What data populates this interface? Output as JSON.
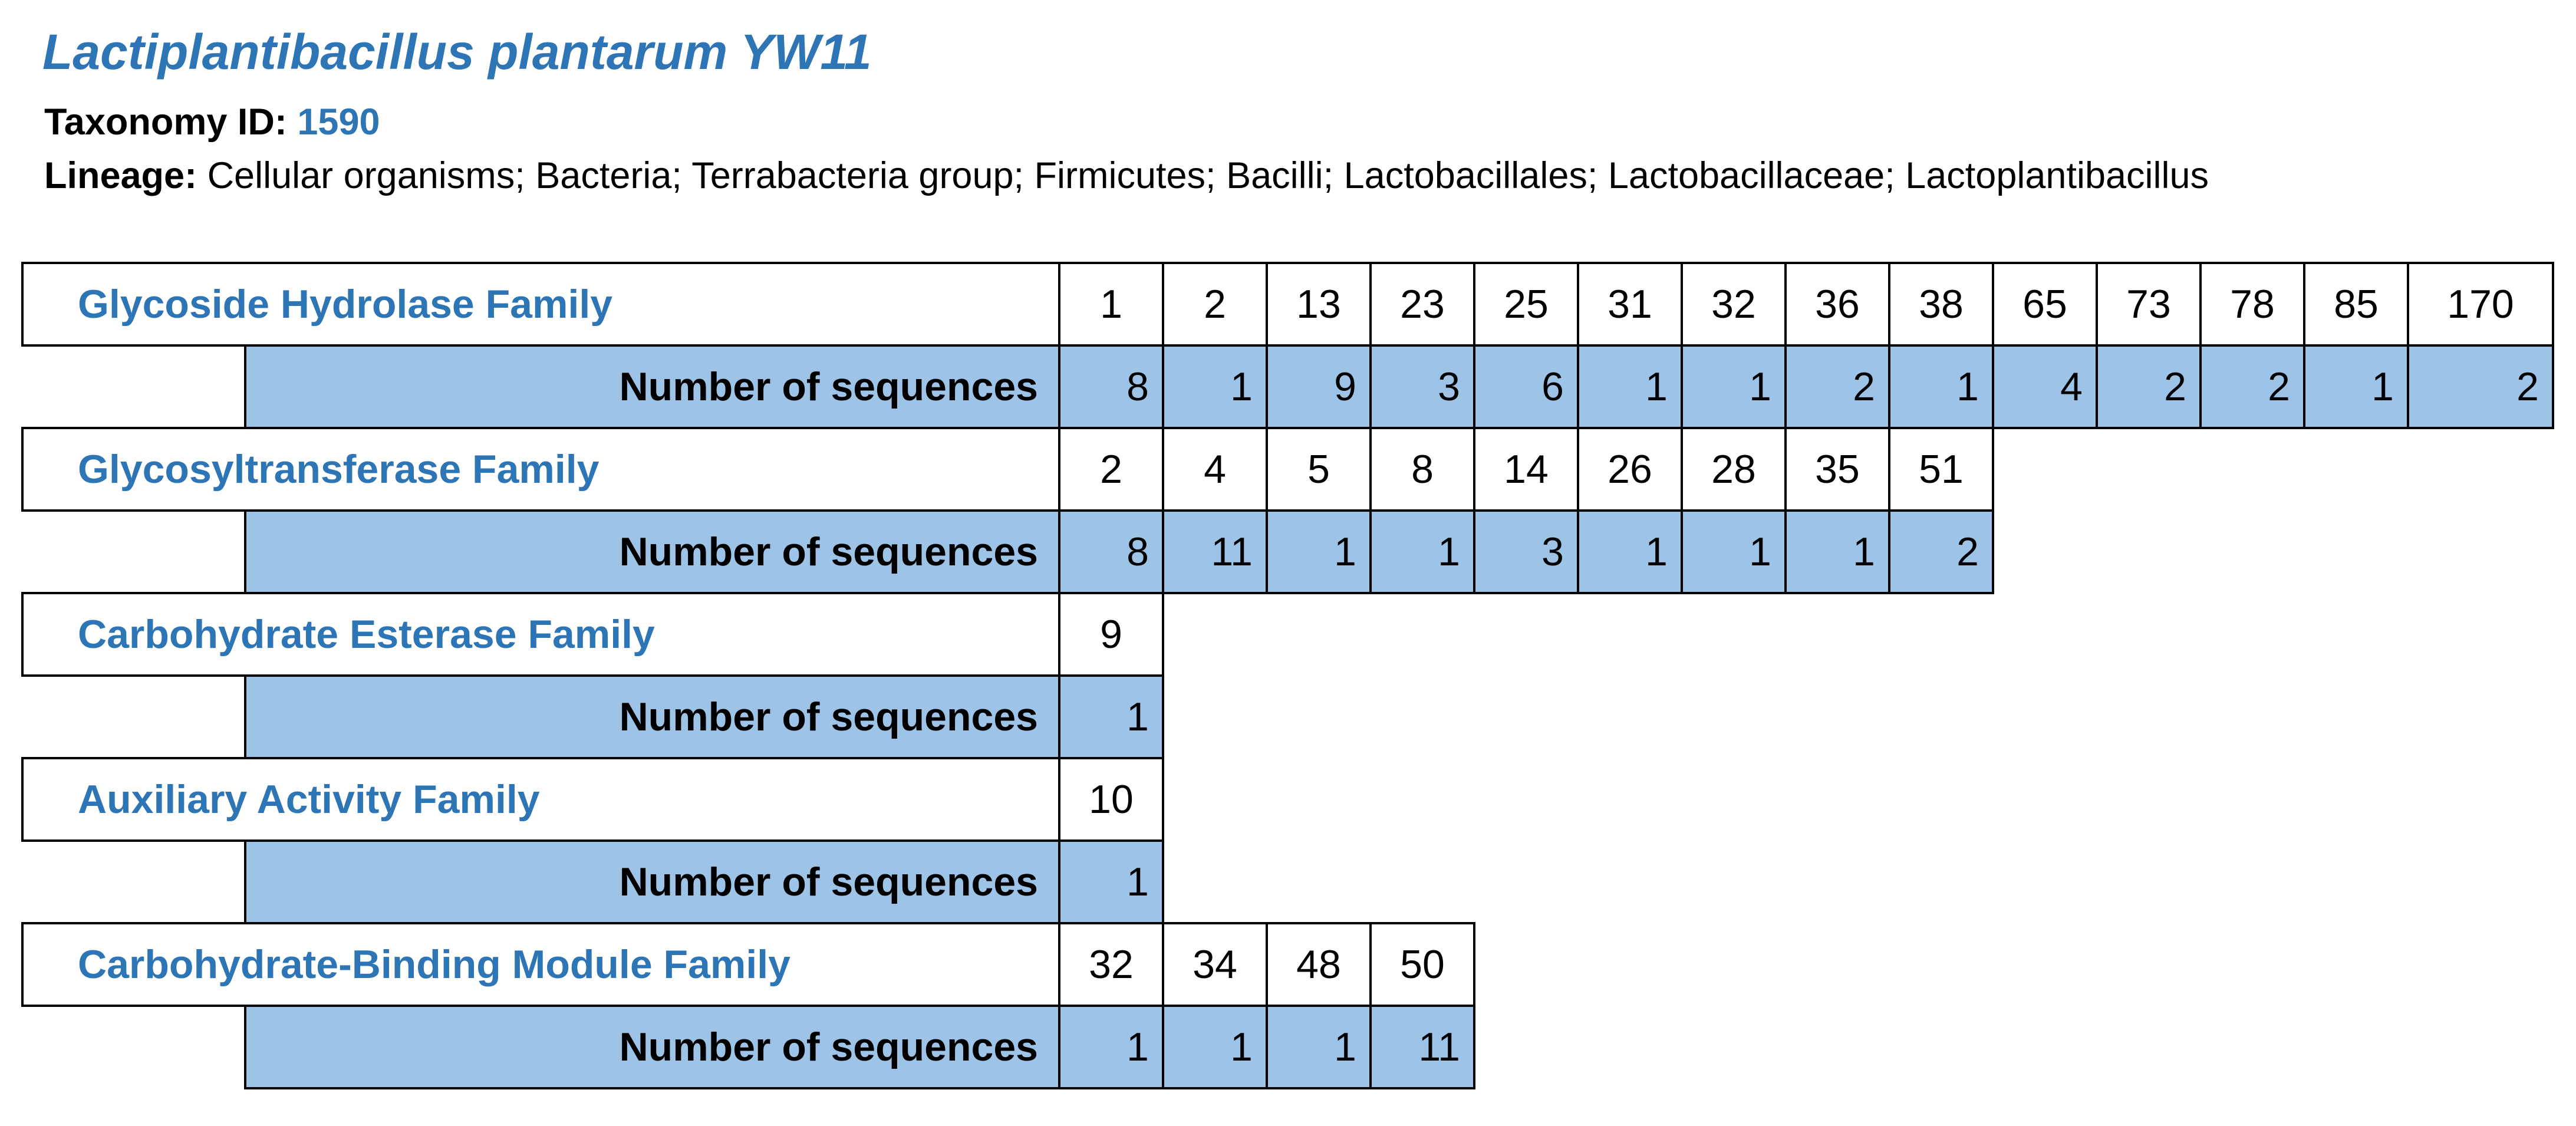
{
  "header": {
    "title": "Lactiplantibacillus plantarum YW11",
    "taxonomy_label": "Taxonomy ID:",
    "taxonomy_id": "1590",
    "lineage_label": "Lineage:",
    "lineage_value": "Cellular organisms; Bacteria; Terrabacteria group; Firmicutes; Bacilli; Lactobacillales; Lactobacillaceae; Lactoplantibacillus"
  },
  "sequence_row_label": "Number of sequences",
  "colors": {
    "accent_blue": "#2e75b6",
    "row_fill": "#9dc3e6",
    "border": "#000000"
  },
  "families": [
    {
      "name": "Glycoside Hydrolase Family",
      "numbers": [
        "1",
        "2",
        "13",
        "23",
        "25",
        "31",
        "32",
        "36",
        "38",
        "65",
        "73",
        "78",
        "85",
        "170"
      ],
      "counts": [
        "8",
        "1",
        "9",
        "3",
        "6",
        "1",
        "1",
        "2",
        "1",
        "4",
        "2",
        "2",
        "1",
        "2"
      ]
    },
    {
      "name": "Glycosyltransferase Family",
      "numbers": [
        "2",
        "4",
        "5",
        "8",
        "14",
        "26",
        "28",
        "35",
        "51"
      ],
      "counts": [
        "8",
        "11",
        "1",
        "1",
        "3",
        "1",
        "1",
        "1",
        "2"
      ]
    },
    {
      "name": "Carbohydrate Esterase Family",
      "numbers": [
        "9"
      ],
      "counts": [
        "1"
      ]
    },
    {
      "name": "Auxiliary Activity Family",
      "numbers": [
        "10"
      ],
      "counts": [
        "1"
      ]
    },
    {
      "name": "Carbohydrate-Binding Module Family",
      "numbers": [
        "32",
        "34",
        "48",
        "50"
      ],
      "counts": [
        "1",
        "1",
        "1",
        "11"
      ]
    }
  ]
}
